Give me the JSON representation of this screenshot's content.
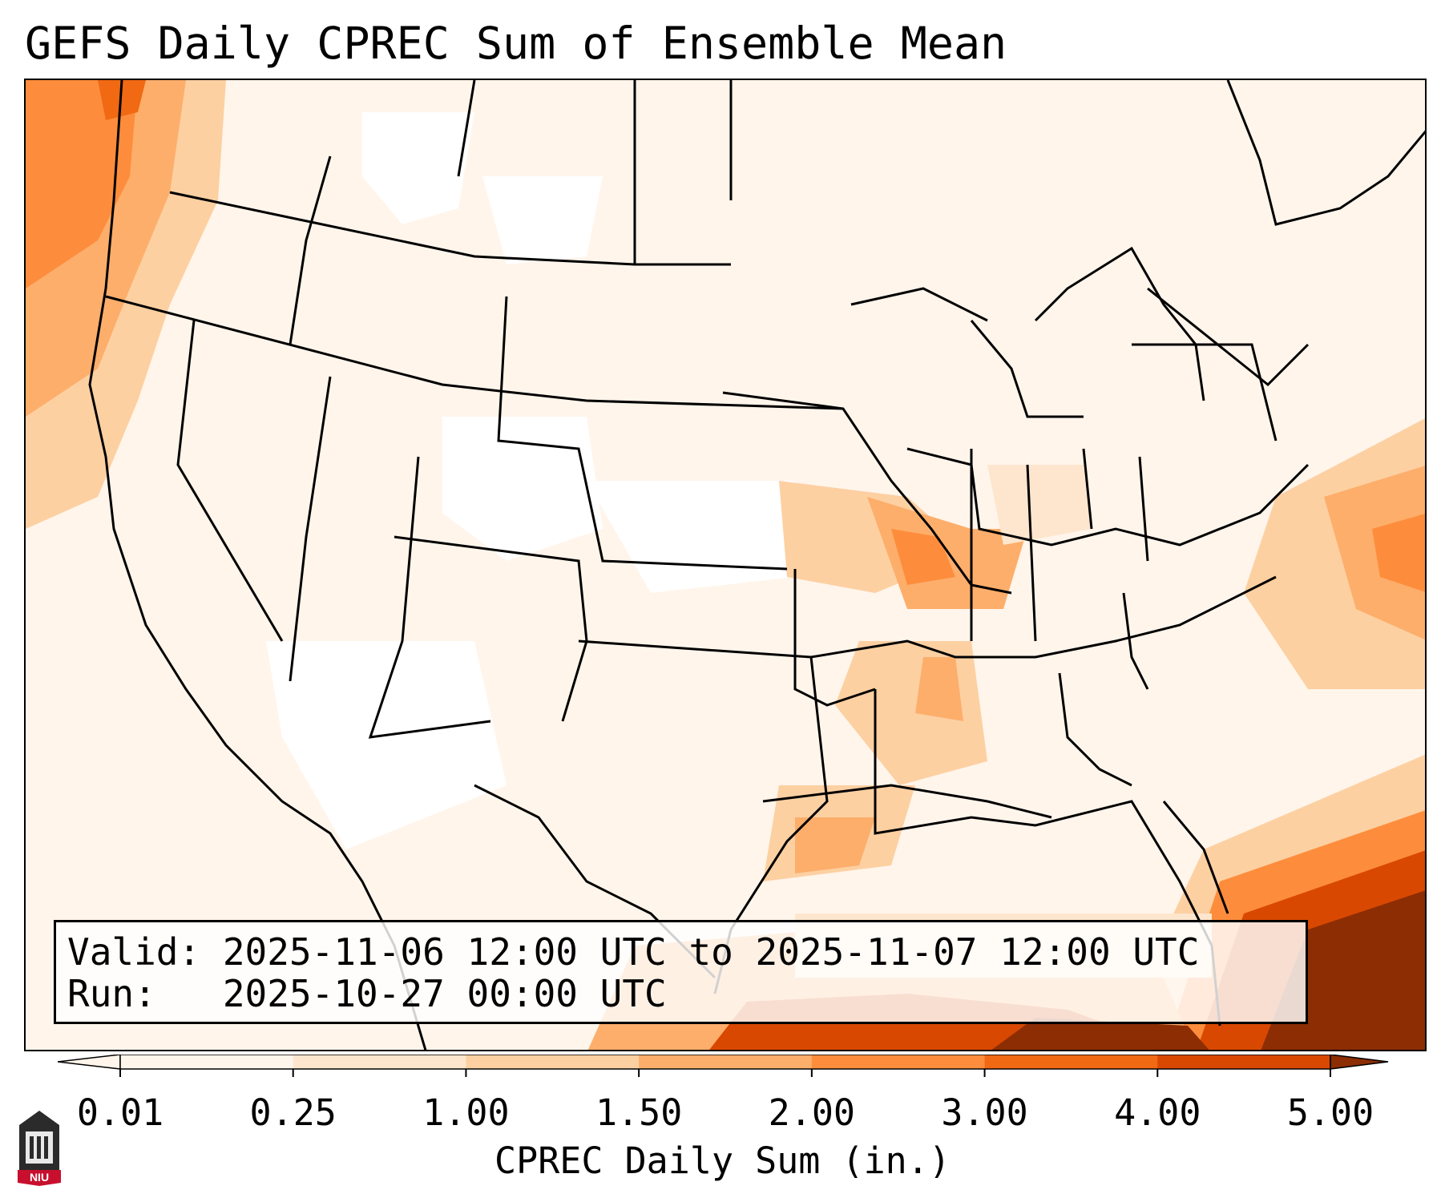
{
  "header": {
    "title": "GEFS Daily CPREC Sum of Ensemble Mean"
  },
  "info": {
    "valid": "Valid: 2025-11-06 12:00 UTC to 2025-11-07 12:00 UTC",
    "run": "Run:   2025-10-27 00:00 UTC"
  },
  "colorbar": {
    "label": "CPREC Daily Sum (in.)",
    "ticks": [
      "0.01",
      "0.25",
      "1.00",
      "1.50",
      "2.00",
      "3.00",
      "4.00",
      "5.00"
    ],
    "colors": [
      "#fff5eb",
      "#fee6ce",
      "#fdd0a2",
      "#fdae6b",
      "#fd8d3c",
      "#f16913",
      "#d94801",
      "#8c2d04"
    ]
  },
  "logo": {
    "label": "NIU"
  },
  "icons": {
    "map": "precipitation-map",
    "logo": "university-seal-icon"
  }
}
